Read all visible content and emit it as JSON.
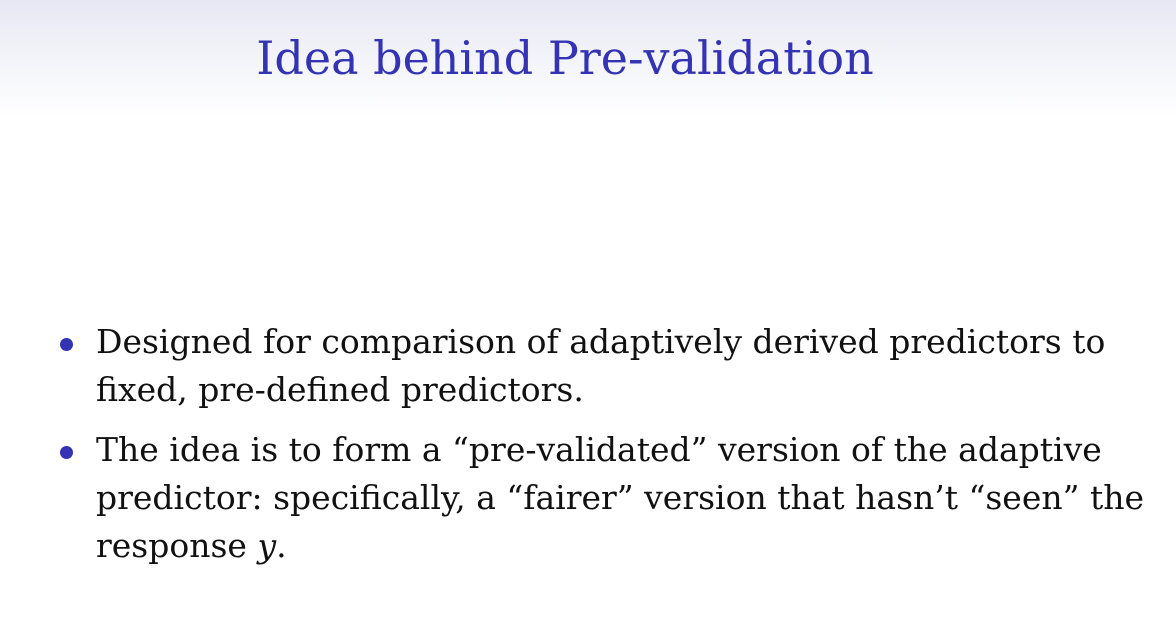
{
  "slide": {
    "title": "Idea behind Pre-validation",
    "bullets": [
      {
        "text": "Designed for comparison of adaptively derived predictors to fixed, pre-defined predictors."
      },
      {
        "text_before": "The idea is to form a “pre-validated” version of the adaptive predictor: specifically, a “fairer” version that hasn’t “seen” the response ",
        "variable": "y",
        "text_after": "."
      }
    ],
    "colors": {
      "title": "#3333b3",
      "bullet_marker": "#3333b3",
      "body_text": "#111111",
      "title_band_top": "#e6e7f3"
    }
  }
}
